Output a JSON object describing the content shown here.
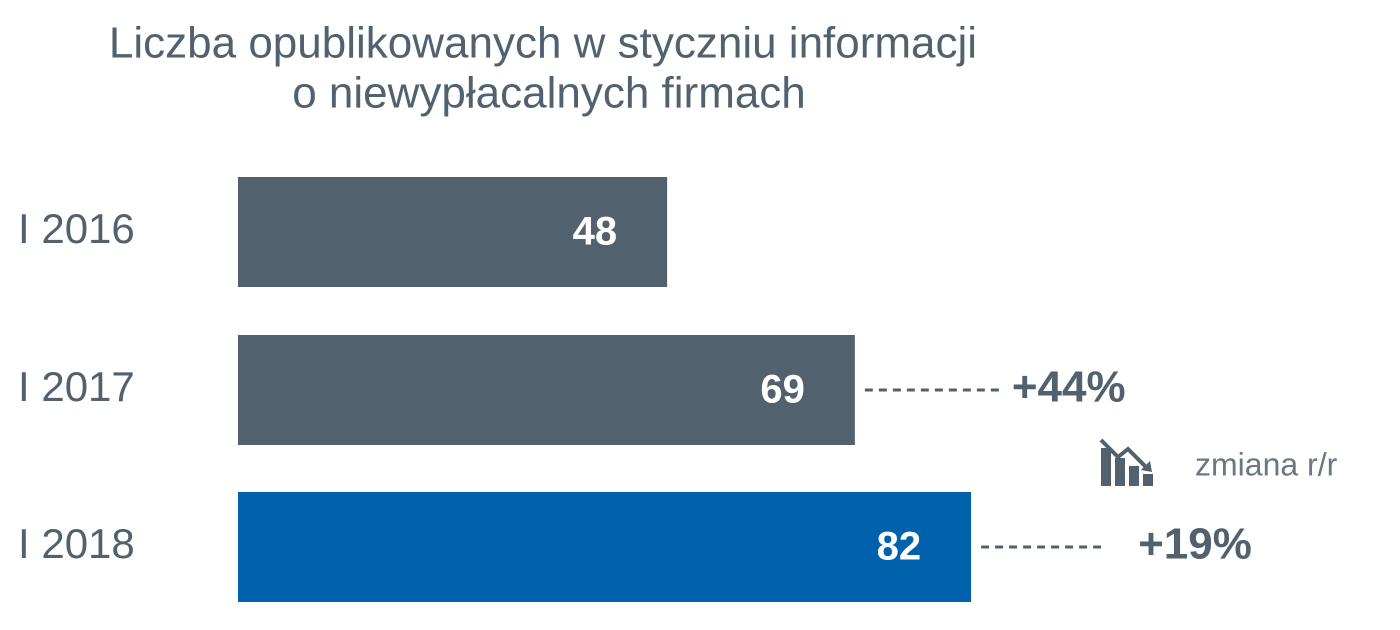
{
  "chart_data": {
    "type": "hbar",
    "title": [
      "Liczba opublikowanych w styczniu informacji",
      "o niewypłacalnych firmach"
    ],
    "categories": [
      "I 2016",
      "I 2017",
      "I 2018"
    ],
    "values": [
      48,
      69,
      82
    ],
    "colors": [
      "#52616e",
      "#52616e",
      "#0062ad"
    ],
    "change": {
      "name": "zmiana r/r",
      "values": [
        null,
        44,
        19
      ],
      "value_labels": [
        null,
        "+44%",
        "+19%"
      ]
    }
  }
}
